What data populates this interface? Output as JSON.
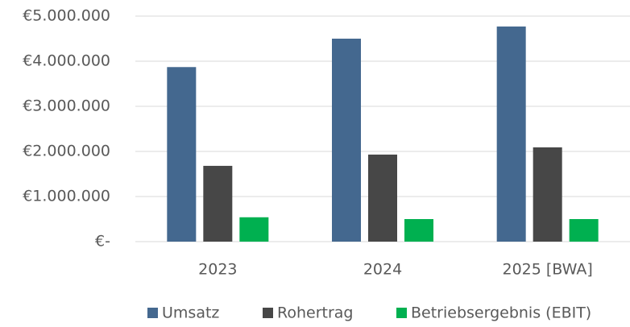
{
  "chart_data": {
    "type": "bar",
    "categories": [
      "2023",
      "2024",
      "2025 [BWA]"
    ],
    "series": [
      {
        "name": "Umsatz",
        "color": "#44688f",
        "values": [
          3870000,
          4500000,
          4770000
        ]
      },
      {
        "name": "Rohertrag",
        "color": "#474747",
        "values": [
          1680000,
          1930000,
          2090000
        ]
      },
      {
        "name": "Betriebsergebnis (EBIT)",
        "color": "#00b050",
        "values": [
          540000,
          500000,
          500000
        ]
      }
    ],
    "ylim": [
      0,
      5000000
    ],
    "yticks": [
      {
        "value": 0,
        "label": "€-"
      },
      {
        "value": 1000000,
        "label": "€1.000.000"
      },
      {
        "value": 2000000,
        "label": "€2.000.000"
      },
      {
        "value": 3000000,
        "label": "€3.000.000"
      },
      {
        "value": 4000000,
        "label": "€4.000.000"
      },
      {
        "value": 5000000,
        "label": "€5.000.000"
      }
    ],
    "grid": true,
    "legend": "bottom"
  }
}
